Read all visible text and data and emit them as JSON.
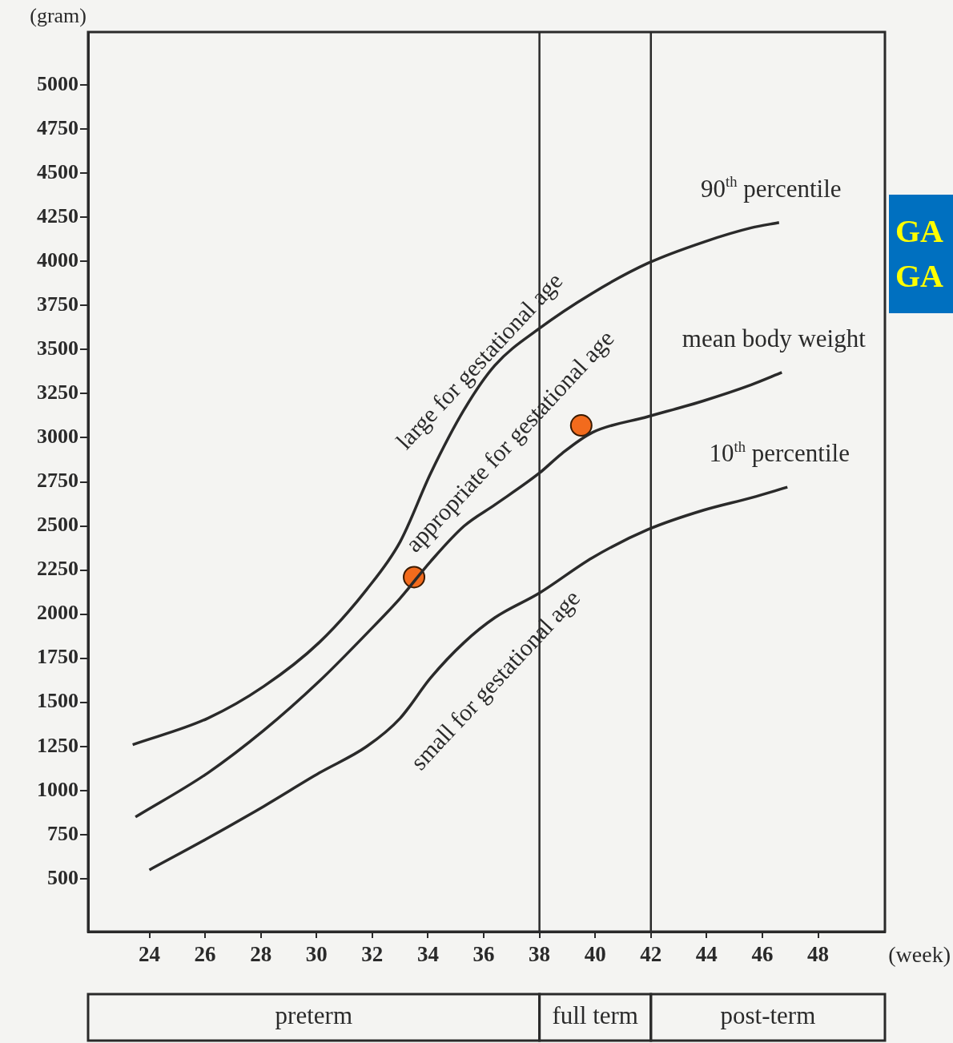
{
  "chart_data": {
    "type": "line",
    "xlabel": "(week)",
    "ylabel": "(gram)",
    "xlim": [
      21.8,
      50.4
    ],
    "ylim": [
      200,
      5300
    ],
    "xticks": [
      24,
      26,
      28,
      30,
      32,
      34,
      36,
      38,
      40,
      42,
      44,
      46,
      48
    ],
    "yticks": [
      500,
      750,
      1000,
      1250,
      1500,
      1750,
      2000,
      2250,
      2500,
      2750,
      3000,
      3250,
      3500,
      3750,
      4000,
      4250,
      4500,
      4750,
      5000
    ],
    "grid": false,
    "legend": false,
    "line_style": "solid",
    "series": [
      {
        "name": "90$^{th}$ percentile",
        "marker": "none",
        "color": "#2a2a2a",
        "x": [
          23.4,
          26.1,
          28.1,
          30.1,
          31.8,
          33,
          34.1,
          35.3,
          36.4,
          38,
          39.9,
          41.9,
          43.9,
          45.6,
          46.6
        ],
        "values": [
          1260,
          1410,
          1590,
          1840,
          2140,
          2410,
          2800,
          3160,
          3410,
          3620,
          3820,
          3990,
          4110,
          4190,
          4220
        ]
      },
      {
        "name": "mean body weight",
        "marker": "none",
        "color": "#2a2a2a",
        "x": [
          23.5,
          26.1,
          28.1,
          30.1,
          31.8,
          33,
          34.1,
          35.3,
          36.4,
          38,
          38.8,
          39.9,
          41.9,
          43.9,
          45.6,
          46.7
        ],
        "values": [
          850,
          1100,
          1340,
          1620,
          1890,
          2090,
          2300,
          2500,
          2620,
          2800,
          2910,
          3030,
          3120,
          3210,
          3300,
          3370
        ]
      },
      {
        "name": "10$^{th}$ percentile",
        "marker": "none",
        "color": "#2a2a2a",
        "x": [
          24,
          26.1,
          28.1,
          30.1,
          31.8,
          33,
          34.1,
          35.3,
          36.4,
          38,
          39.9,
          41.9,
          43.9,
          45.6,
          46.9
        ],
        "values": [
          550,
          730,
          910,
          1100,
          1250,
          1410,
          1640,
          1840,
          1980,
          2120,
          2320,
          2480,
          2590,
          2660,
          2720
        ]
      },
      {
        "type": "scatter",
        "marker": "circle",
        "color": "#f26b1d",
        "x": [
          33.5,
          39.5
        ],
        "values": [
          2210,
          3070
        ]
      }
    ],
    "ref_lines": [
      {
        "axis": "x",
        "value": 38
      },
      {
        "axis": "x",
        "value": 42
      }
    ],
    "annotations": [
      "large for gestational age",
      "appropriate for gestational age",
      "small for gestational age",
      "preterm",
      "full term",
      "post-term",
      "GA",
      "GA"
    ]
  }
}
